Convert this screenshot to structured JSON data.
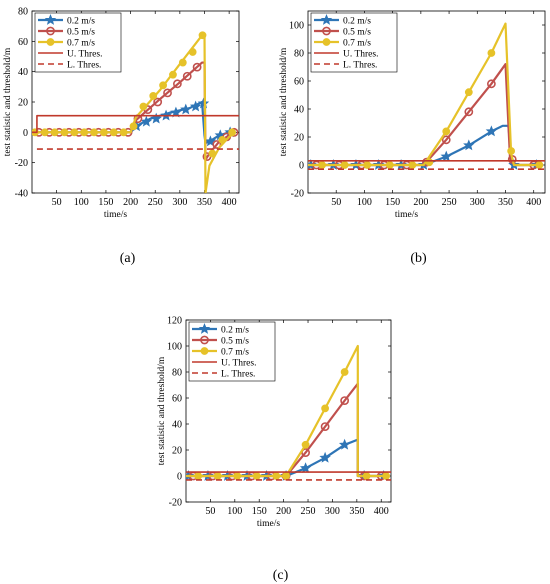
{
  "chart_data": [
    {
      "type": "line",
      "panel_label": "(a)",
      "xlabel": "time/s",
      "ylabel": "test statistic and threshold/m",
      "xlim": [
        0,
        420
      ],
      "ylim": [
        -40,
        80
      ],
      "xticks": [
        50,
        100,
        150,
        200,
        250,
        300,
        350,
        400
      ],
      "yticks": [
        -40,
        -20,
        0,
        20,
        40,
        60,
        80
      ],
      "legend_position": "top-left",
      "series": [
        {
          "name": "0.2 m/s",
          "color": "#2e75b6",
          "marker": "star",
          "x": [
            0,
            200,
            211,
            240,
            280,
            320,
            345,
            350,
            352,
            360,
            380,
            400,
            412
          ],
          "y": [
            0,
            0,
            4,
            9,
            13,
            16,
            20,
            -2,
            -7,
            -6,
            -2,
            0,
            0
          ],
          "marker_x": [
            212,
            232,
            252,
            272,
            292,
            312,
            332,
            348,
            362,
            382,
            402
          ],
          "marker_y": [
            4,
            7,
            9,
            11,
            13,
            15,
            17,
            19,
            -6,
            -2,
            0
          ]
        },
        {
          "name": "0.5 m/s",
          "color": "#c0504d",
          "marker": "circle",
          "x": [
            0,
            200,
            211,
            260,
            300,
            345,
            350,
            352,
            360,
            380,
            400,
            412
          ],
          "y": [
            0,
            0,
            8,
            22,
            33,
            46,
            46,
            -18,
            -14,
            -6,
            -2,
            0
          ],
          "marker_x": [
            14,
            35,
            55,
            75,
            95,
            115,
            135,
            155,
            175,
            195,
            215,
            235,
            255,
            275,
            295,
            315,
            335,
            355,
            375,
            395,
            410
          ],
          "marker_y": [
            0,
            0,
            0,
            0,
            0,
            0,
            0,
            0,
            0,
            0,
            9,
            15,
            20,
            26,
            32,
            37,
            43,
            -16,
            -8,
            -3,
            0
          ]
        },
        {
          "name": "0.7 m/s",
          "color": "#e6c229",
          "marker": "circle-filled",
          "x": [
            0,
            200,
            211,
            260,
            300,
            345,
            350,
            352,
            360,
            380,
            400,
            412
          ],
          "y": [
            0,
            0,
            10,
            28,
            45,
            64,
            65,
            -40,
            -22,
            -10,
            -3,
            0
          ],
          "marker_x": [
            6,
            26,
            46,
            66,
            86,
            106,
            126,
            146,
            166,
            186,
            206,
            226,
            246,
            266,
            286,
            306,
            326,
            346,
            366,
            386,
            406
          ],
          "marker_y": [
            0,
            0,
            0,
            0,
            0,
            0,
            0,
            0,
            0,
            0,
            4,
            17,
            24,
            31,
            38,
            46,
            53,
            64,
            -14,
            -5,
            0
          ]
        },
        {
          "name": "U. Thres.",
          "color": "#c0392b",
          "style": "solid",
          "x": [
            0,
            10,
            10,
            420
          ],
          "y": [
            0,
            0,
            11,
            11
          ]
        },
        {
          "name": "L. Thres.",
          "color": "#c0392b",
          "style": "dashed",
          "x": [
            10,
            420
          ],
          "y": [
            -11,
            -11
          ]
        }
      ]
    },
    {
      "type": "line",
      "panel_label": "(b)",
      "xlabel": "time/s",
      "ylabel": "test statistic and threshold/m",
      "xlim": [
        0,
        420
      ],
      "ylim": [
        -20,
        110
      ],
      "xticks": [
        50,
        100,
        150,
        200,
        250,
        300,
        350,
        400
      ],
      "yticks": [
        -20,
        0,
        20,
        40,
        60,
        80,
        100
      ],
      "legend_position": "top-left",
      "series": [
        {
          "name": "0.2 m/s",
          "color": "#2e75b6",
          "marker": "star",
          "x": [
            0,
            205,
            245,
            285,
            325,
            345,
            355,
            362,
            375,
            410
          ],
          "y": [
            0,
            0,
            6,
            14,
            24,
            28,
            28,
            0,
            0,
            0
          ],
          "marker_x": [
            5,
            45,
            85,
            125,
            165,
            205,
            245,
            285,
            325,
            365,
            405
          ],
          "marker_y": [
            0,
            0,
            0,
            0,
            0,
            0,
            6,
            14,
            24,
            0,
            0
          ]
        },
        {
          "name": "0.5 m/s",
          "color": "#c0504d",
          "marker": "circle",
          "x": [
            0,
            205,
            245,
            285,
            325,
            350,
            358,
            365,
            410
          ],
          "y": [
            0,
            0,
            18,
            38,
            58,
            72,
            5,
            0,
            0
          ],
          "marker_x": [
            15,
            55,
            95,
            135,
            175,
            210,
            245,
            285,
            325,
            362,
            400
          ],
          "marker_y": [
            0,
            0,
            0,
            0,
            0,
            2,
            18,
            38,
            58,
            4,
            0
          ]
        },
        {
          "name": "0.7 m/s",
          "color": "#e6c229",
          "marker": "circle-filled",
          "x": [
            0,
            205,
            245,
            285,
            325,
            350,
            360,
            365,
            410
          ],
          "y": [
            0,
            0,
            24,
            52,
            80,
            101,
            8,
            0,
            0
          ],
          "marker_x": [
            25,
            65,
            105,
            145,
            185,
            215,
            245,
            285,
            325,
            360,
            410
          ],
          "marker_y": [
            0,
            0,
            0,
            0,
            0,
            2,
            24,
            52,
            80,
            10,
            0
          ]
        },
        {
          "name": "U. Thres.",
          "color": "#c0392b",
          "style": "solid",
          "x": [
            0,
            420
          ],
          "y": [
            3,
            3
          ]
        },
        {
          "name": "L. Thres.",
          "color": "#c0392b",
          "style": "dashed",
          "x": [
            0,
            420
          ],
          "y": [
            -3,
            -3
          ]
        }
      ]
    },
    {
      "type": "line",
      "panel_label": "(c)",
      "xlabel": "time/s",
      "ylabel": "test statistic and threshold/m",
      "xlim": [
        0,
        420
      ],
      "ylim": [
        -20,
        120
      ],
      "xticks": [
        50,
        100,
        150,
        200,
        250,
        300,
        350,
        400
      ],
      "yticks": [
        -20,
        0,
        20,
        40,
        60,
        80,
        100,
        120
      ],
      "legend_position": "top-left",
      "series": [
        {
          "name": "0.2 m/s",
          "color": "#2e75b6",
          "marker": "star",
          "x": [
            0,
            205,
            245,
            285,
            325,
            352,
            352,
            365,
            410
          ],
          "y": [
            0,
            0,
            6,
            14,
            24,
            28,
            0,
            0,
            0
          ],
          "marker_x": [
            5,
            45,
            85,
            125,
            165,
            205,
            245,
            285,
            325,
            365,
            405
          ],
          "marker_y": [
            0,
            0,
            0,
            0,
            0,
            0,
            6,
            14,
            24,
            0,
            0
          ]
        },
        {
          "name": "0.5 m/s",
          "color": "#c0504d",
          "marker": "circle",
          "x": [
            0,
            205,
            245,
            285,
            325,
            352,
            352,
            365,
            410
          ],
          "y": [
            0,
            0,
            18,
            38,
            58,
            71,
            0,
            0,
            0
          ],
          "marker_x": [
            15,
            55,
            95,
            135,
            175,
            205,
            245,
            285,
            325,
            365,
            400
          ],
          "marker_y": [
            0,
            0,
            0,
            0,
            0,
            0,
            18,
            38,
            58,
            0,
            0
          ]
        },
        {
          "name": "0.7 m/s",
          "color": "#e6c229",
          "marker": "circle-filled",
          "x": [
            0,
            205,
            245,
            285,
            325,
            352,
            352,
            365,
            410
          ],
          "y": [
            0,
            0,
            24,
            52,
            80,
            100,
            0,
            0,
            0
          ],
          "marker_x": [
            25,
            65,
            105,
            145,
            185,
            205,
            245,
            285,
            325,
            370,
            410
          ],
          "marker_y": [
            0,
            0,
            0,
            0,
            0,
            0,
            24,
            52,
            80,
            0,
            0
          ]
        },
        {
          "name": "U. Thres.",
          "color": "#c0392b",
          "style": "solid",
          "x": [
            0,
            420
          ],
          "y": [
            3,
            3
          ]
        },
        {
          "name": "L. Thres.",
          "color": "#c0392b",
          "style": "dashed",
          "x": [
            0,
            420
          ],
          "y": [
            -3,
            -3
          ]
        }
      ]
    }
  ]
}
